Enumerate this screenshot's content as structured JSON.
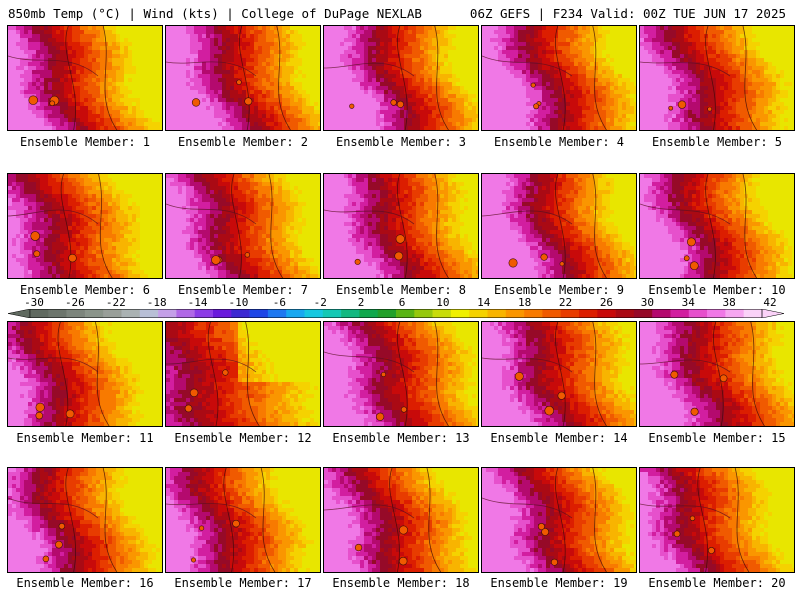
{
  "header": {
    "left_title": "850mb Temp (°C) | Wind (kts) | College of DuPage NEXLAB",
    "right_title": "06Z GEFS | F234 Valid: 00Z TUE JUN 17 2025"
  },
  "label_prefix": "Ensemble Member: ",
  "members": [
    {
      "label": "Ensemble Member: 1",
      "hot_edge": 0.45,
      "warmth": 1.05
    },
    {
      "label": "Ensemble Member: 2",
      "hot_edge": 0.55,
      "warmth": 1.05
    },
    {
      "label": "Ensemble Member: 3",
      "hot_edge": 0.55,
      "warmth": 1.1
    },
    {
      "label": "Ensemble Member: 4",
      "hot_edge": 0.55,
      "warmth": 1.05
    },
    {
      "label": "Ensemble Member: 5",
      "hot_edge": 0.5,
      "warmth": 1.0
    },
    {
      "label": "Ensemble Member: 6",
      "hot_edge": 0.42,
      "warmth": 0.95
    },
    {
      "label": "Ensemble Member: 7",
      "hot_edge": 0.5,
      "warmth": 1.0
    },
    {
      "label": "Ensemble Member: 8",
      "hot_edge": 0.55,
      "warmth": 1.0
    },
    {
      "label": "Ensemble Member: 9",
      "hot_edge": 0.55,
      "warmth": 1.1
    },
    {
      "label": "Ensemble Member: 10",
      "hot_edge": 0.5,
      "warmth": 1.05
    },
    {
      "label": "Ensemble Member: 11",
      "hot_edge": 0.4,
      "warmth": 1.0
    },
    {
      "label": "Ensemble Member: 12",
      "hot_edge": 0.35,
      "warmth": 0.7
    },
    {
      "label": "Ensemble Member: 13",
      "hot_edge": 0.55,
      "warmth": 0.95
    },
    {
      "label": "Ensemble Member: 14",
      "hot_edge": 0.55,
      "warmth": 0.95
    },
    {
      "label": "Ensemble Member: 15",
      "hot_edge": 0.55,
      "warmth": 0.95
    },
    {
      "label": "Ensemble Member: 16",
      "hot_edge": 0.45,
      "warmth": 1.0
    },
    {
      "label": "Ensemble Member: 17",
      "hot_edge": 0.45,
      "warmth": 1.0
    },
    {
      "label": "Ensemble Member: 18",
      "hot_edge": 0.5,
      "warmth": 1.0
    },
    {
      "label": "Ensemble Member: 19",
      "hot_edge": 0.55,
      "warmth": 1.0
    },
    {
      "label": "Ensemble Member: 20",
      "hot_edge": 0.45,
      "warmth": 1.0
    }
  ],
  "colorbar": {
    "ticks": [
      "-30",
      "-26",
      "-22",
      "-18",
      "-14",
      "-10",
      "-6",
      "-2",
      "2",
      "6",
      "10",
      "14",
      "18",
      "22",
      "26",
      "30",
      "34",
      "38",
      "42"
    ],
    "colors": [
      "#606a60",
      "#6c756c",
      "#7c857c",
      "#8a948a",
      "#999f99",
      "#aab2b2",
      "#b8bfd6",
      "#c49fe8",
      "#b068e6",
      "#8c3ce6",
      "#6a1adc",
      "#3c28d2",
      "#1e46e6",
      "#1e78f0",
      "#18a8f0",
      "#16c8e0",
      "#14c8b4",
      "#12b880",
      "#10a84c",
      "#22a02a",
      "#5ab414",
      "#96c80c",
      "#c8dc0a",
      "#f0f000",
      "#f5d200",
      "#f8b400",
      "#fa9600",
      "#f87a00",
      "#f05a00",
      "#e83c00",
      "#dc1e00",
      "#c80a0a",
      "#aa0a14",
      "#960a28",
      "#b40a6e",
      "#d21ea0",
      "#e650cc",
      "#f078e6",
      "#f6a6f0",
      "#fad2f8"
    ]
  }
}
